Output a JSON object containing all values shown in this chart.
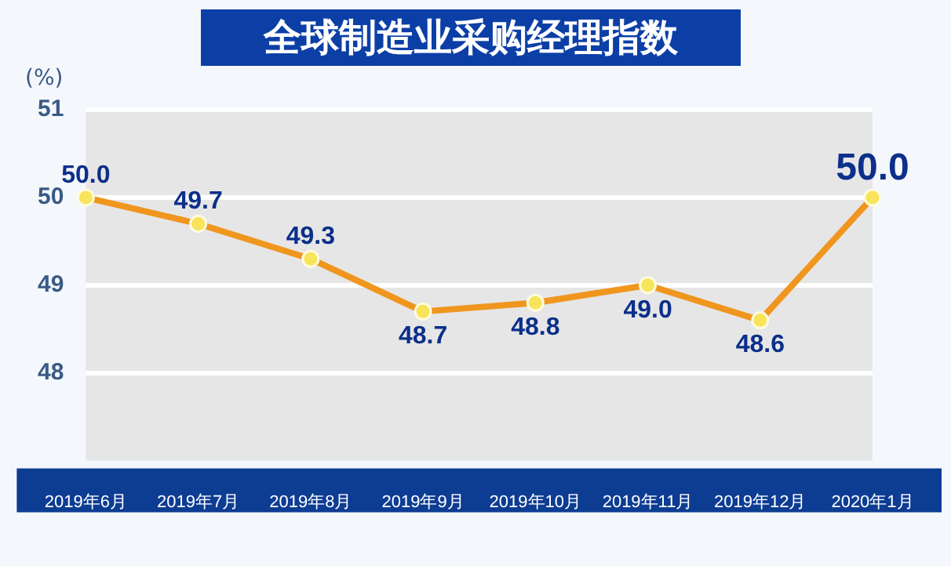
{
  "chart_data": {
    "type": "line",
    "title": "全球制造业采购经理指数",
    "ylabel": "(%)",
    "categories": [
      "2019年6月",
      "2019年7月",
      "2019年8月",
      "2019年9月",
      "2019年10月",
      "2019年11月",
      "2019年12月",
      "2020年1月"
    ],
    "series": [
      {
        "color": "#f0961e",
        "values": [
          50.0,
          49.7,
          49.3,
          48.7,
          48.8,
          49.0,
          48.6,
          50.0
        ],
        "value_labels": [
          "50.0",
          "49.7",
          "49.3",
          "48.7",
          "48.8",
          "49.0",
          "48.6",
          "50.0"
        ]
      }
    ],
    "ylim": [
      47,
      51
    ],
    "yticks": [
      48,
      49,
      50,
      51
    ],
    "grid": "y",
    "marker": "circle",
    "legend": false
  }
}
